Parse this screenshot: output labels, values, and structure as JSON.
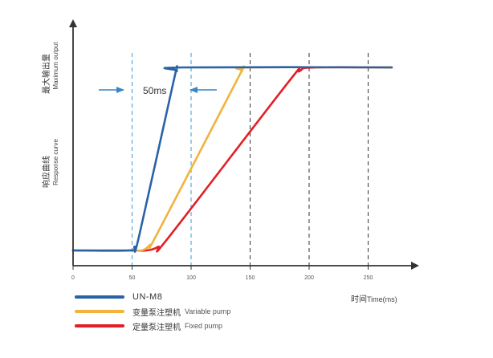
{
  "chart_data": {
    "type": "line",
    "y_title_top_cn": "最大输出量",
    "y_title_top_en": "Maximum output",
    "y_title_mid_cn": "响应曲线",
    "y_title_mid_en": "Response curve",
    "x_title_cn": "时间",
    "x_title_en": "Time(ms)",
    "x_ticks": [
      0,
      50,
      100,
      150,
      200,
      250
    ],
    "xlim": [
      0,
      300
    ],
    "ylim": [
      0,
      1.1
    ],
    "annotation": "50ms",
    "series": [
      {
        "name": "UN-M8",
        "color": "#2a62a8",
        "points": [
          [
            0,
            0
          ],
          [
            48,
            0
          ],
          [
            52,
            0.02
          ],
          [
            56,
            0.08
          ],
          [
            85,
            0.92
          ],
          [
            88,
            0.98
          ],
          [
            93,
            1.0
          ],
          [
            270,
            1.0
          ]
        ]
      },
      {
        "name": "变量泵注塑机",
        "name_en": "Variable pump",
        "color": "#f1b33c",
        "points": [
          [
            0,
            0
          ],
          [
            48,
            0
          ],
          [
            58,
            0
          ],
          [
            65,
            0.03
          ],
          [
            72,
            0.1
          ],
          [
            138,
            0.92
          ],
          [
            143,
            0.98
          ],
          [
            150,
            1.0
          ],
          [
            270,
            1.0
          ]
        ]
      },
      {
        "name": "定量泵注塑机",
        "name_en": "Fixed pump",
        "color": "#e11f26",
        "points": [
          [
            0,
            0
          ],
          [
            48,
            0
          ],
          [
            62,
            0
          ],
          [
            72,
            0.02
          ],
          [
            82,
            0.08
          ],
          [
            180,
            0.9
          ],
          [
            192,
            0.98
          ],
          [
            205,
            1.0
          ],
          [
            270,
            1.0
          ]
        ]
      }
    ],
    "vertical_lines": [
      {
        "x": 50,
        "color": "#4ba3d9"
      },
      {
        "x": 100,
        "color": "#4ba3d9"
      },
      {
        "x": 150,
        "color": "#444444"
      },
      {
        "x": 200,
        "color": "#444444"
      },
      {
        "x": 250,
        "color": "#444444"
      }
    ],
    "arrow_color": "#3a86c6",
    "legend_placement": "bottom-left"
  }
}
